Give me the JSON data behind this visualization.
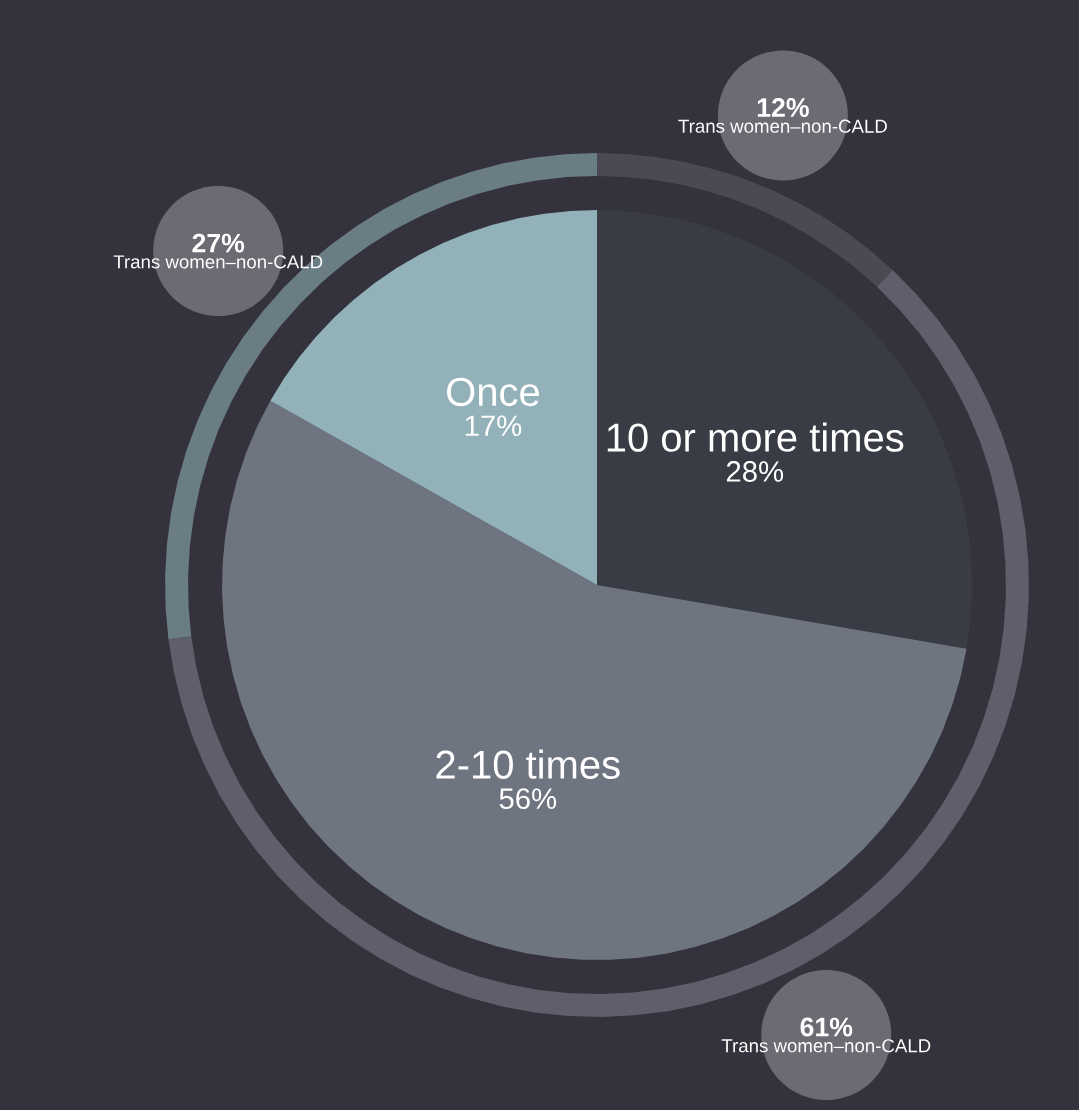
{
  "chart_data": [
    {
      "type": "pie",
      "categories": [
        "10 or more times",
        "2-10 times",
        "Once"
      ],
      "values": [
        28,
        56,
        17
      ],
      "colors": [
        "#393c44",
        "#6f7580",
        "#92b1b8"
      ],
      "value_labels": [
        "28%",
        "56%",
        "17%"
      ]
    },
    {
      "type": "donut",
      "categories": [
        "Trans women–non-CALD",
        "Trans women–non-CALD",
        "Trans women–non-CALD"
      ],
      "values": [
        12,
        61,
        27
      ],
      "colors": [
        "#4b4953",
        "#5e5f6a",
        "#6a7c84"
      ],
      "value_labels": [
        "12%",
        "61%",
        "27%"
      ]
    }
  ]
}
